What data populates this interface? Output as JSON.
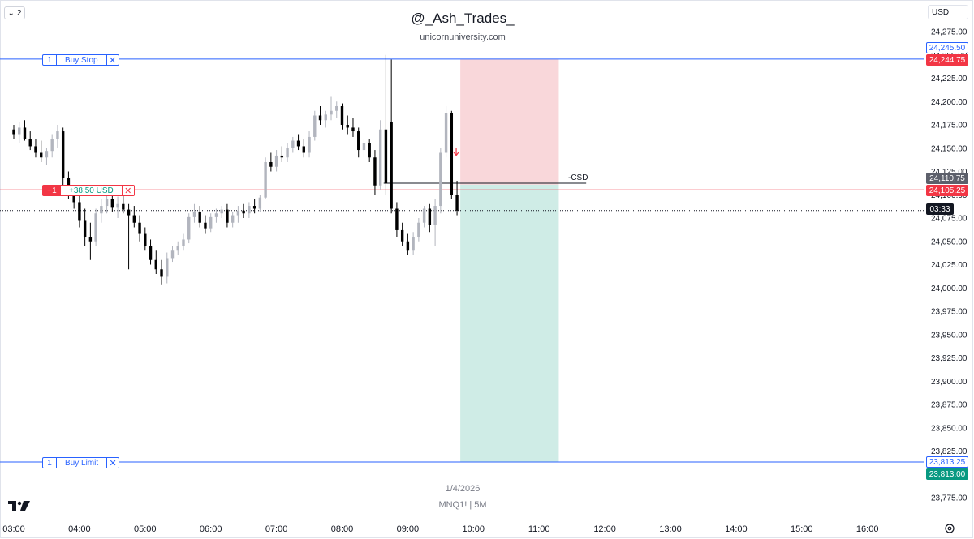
{
  "header": {
    "interval_count": "2",
    "currency": "USD"
  },
  "watermark": {
    "title": "@_Ash_Trades_",
    "subtitle": "unicornuniversity.com",
    "date": "1/4/2026",
    "symbol": "MNQ1!  |  5M"
  },
  "orders": {
    "buy_stop": {
      "qty": "1",
      "label": "Buy Stop",
      "price": 24245.5,
      "price_label": "24,245.50"
    },
    "buy_limit": {
      "qty": "1",
      "label": "Buy Limit",
      "price": 23813.25,
      "price_label": "23,813.25"
    }
  },
  "position": {
    "qty": "−1",
    "pnl": "+38.50 USD",
    "price": 24105.25,
    "price_label": "24,105.25"
  },
  "annotation": {
    "text": "-CSD",
    "price": 24115
  },
  "price_tags": {
    "stop_level": "24,244.75",
    "last_price": "24,110.75",
    "countdown": "03:33",
    "target_level": "23,813.00"
  },
  "colors": {
    "up_candle": "#b2b5be",
    "down_candle": "#000000",
    "order_line": "#2962ff",
    "position_line": "#f23645",
    "stop_zone": "#f7c9ce",
    "target_zone": "#bfe6dd",
    "grid": "#f0f3fa"
  },
  "chart_data": {
    "type": "candlestick",
    "ylim": [
      23765,
      24300
    ],
    "y_ticks": [
      "24,275.00",
      "24,250.00",
      "24,225.00",
      "24,200.00",
      "24,175.00",
      "24,150.00",
      "24,125.00",
      "24,100.00",
      "24,075.00",
      "24,050.00",
      "24,025.00",
      "24,000.00",
      "23,975.00",
      "23,950.00",
      "23,925.00",
      "23,900.00",
      "23,875.00",
      "23,850.00",
      "23,825.00",
      "23,800.00",
      "23,775.00"
    ],
    "x_ticks": [
      "03:00",
      "04:00",
      "05:00",
      "06:00",
      "07:00",
      "08:00",
      "09:00",
      "10:00",
      "11:00",
      "12:00",
      "13:00",
      "14:00",
      "15:00",
      "16:00"
    ],
    "x_tick_minutes": [
      0,
      60,
      120,
      180,
      240,
      300,
      360,
      420,
      480,
      540,
      600,
      660,
      720,
      780
    ],
    "risk_box": {
      "start_minute": 408,
      "end_minute": 498,
      "top": 24245.5,
      "entry": 24110.75,
      "bottom": 23813.25
    },
    "current_price_line": 24083,
    "candles": [
      {
        "t": 0,
        "o": 24170,
        "h": 24175,
        "l": 24160,
        "c": 24165
      },
      {
        "t": 5,
        "o": 24165,
        "h": 24178,
        "l": 24155,
        "c": 24172
      },
      {
        "t": 10,
        "o": 24172,
        "h": 24180,
        "l": 24158,
        "c": 24160
      },
      {
        "t": 15,
        "o": 24160,
        "h": 24168,
        "l": 24148,
        "c": 24152
      },
      {
        "t": 20,
        "o": 24152,
        "h": 24160,
        "l": 24140,
        "c": 24145
      },
      {
        "t": 25,
        "o": 24145,
        "h": 24158,
        "l": 24135,
        "c": 24140
      },
      {
        "t": 30,
        "o": 24140,
        "h": 24150,
        "l": 24132,
        "c": 24147
      },
      {
        "t": 35,
        "o": 24147,
        "h": 24165,
        "l": 24140,
        "c": 24160
      },
      {
        "t": 40,
        "o": 24160,
        "h": 24175,
        "l": 24150,
        "c": 24168
      },
      {
        "t": 45,
        "o": 24168,
        "h": 24172,
        "l": 24110,
        "c": 24118
      },
      {
        "t": 50,
        "o": 24118,
        "h": 24125,
        "l": 24095,
        "c": 24100
      },
      {
        "t": 55,
        "o": 24100,
        "h": 24108,
        "l": 24085,
        "c": 24092
      },
      {
        "t": 60,
        "o": 24092,
        "h": 24100,
        "l": 24065,
        "c": 24072
      },
      {
        "t": 65,
        "o": 24072,
        "h": 24085,
        "l": 24045,
        "c": 24055
      },
      {
        "t": 70,
        "o": 24055,
        "h": 24070,
        "l": 24030,
        "c": 24050
      },
      {
        "t": 75,
        "o": 24050,
        "h": 24085,
        "l": 24045,
        "c": 24080
      },
      {
        "t": 80,
        "o": 24080,
        "h": 24095,
        "l": 24070,
        "c": 24088
      },
      {
        "t": 85,
        "o": 24088,
        "h": 24100,
        "l": 24080,
        "c": 24095
      },
      {
        "t": 90,
        "o": 24095,
        "h": 24102,
        "l": 24082,
        "c": 24086
      },
      {
        "t": 95,
        "o": 24086,
        "h": 24098,
        "l": 24075,
        "c": 24090
      },
      {
        "t": 100,
        "o": 24090,
        "h": 24100,
        "l": 24080,
        "c": 24084
      },
      {
        "t": 105,
        "o": 24084,
        "h": 24090,
        "l": 24020,
        "c": 24078
      },
      {
        "t": 110,
        "o": 24078,
        "h": 24088,
        "l": 24065,
        "c": 24070
      },
      {
        "t": 115,
        "o": 24070,
        "h": 24078,
        "l": 24050,
        "c": 24058
      },
      {
        "t": 120,
        "o": 24058,
        "h": 24065,
        "l": 24040,
        "c": 24045
      },
      {
        "t": 125,
        "o": 24045,
        "h": 24052,
        "l": 24025,
        "c": 24030
      },
      {
        "t": 130,
        "o": 24030,
        "h": 24040,
        "l": 24015,
        "c": 24020
      },
      {
        "t": 135,
        "o": 24020,
        "h": 24030,
        "l": 24003,
        "c": 24012
      },
      {
        "t": 140,
        "o": 24012,
        "h": 24038,
        "l": 24005,
        "c": 24032
      },
      {
        "t": 145,
        "o": 24032,
        "h": 24045,
        "l": 24028,
        "c": 24040
      },
      {
        "t": 150,
        "o": 24040,
        "h": 24050,
        "l": 24035,
        "c": 24045
      },
      {
        "t": 155,
        "o": 24045,
        "h": 24058,
        "l": 24040,
        "c": 24052
      },
      {
        "t": 160,
        "o": 24052,
        "h": 24080,
        "l": 24048,
        "c": 24076
      },
      {
        "t": 165,
        "o": 24076,
        "h": 24090,
        "l": 24070,
        "c": 24082
      },
      {
        "t": 170,
        "o": 24082,
        "h": 24088,
        "l": 24065,
        "c": 24070
      },
      {
        "t": 175,
        "o": 24070,
        "h": 24078,
        "l": 24058,
        "c": 24064
      },
      {
        "t": 180,
        "o": 24064,
        "h": 24080,
        "l": 24060,
        "c": 24076
      },
      {
        "t": 185,
        "o": 24076,
        "h": 24085,
        "l": 24070,
        "c": 24080
      },
      {
        "t": 190,
        "o": 24080,
        "h": 24088,
        "l": 24075,
        "c": 24084
      },
      {
        "t": 195,
        "o": 24084,
        "h": 24090,
        "l": 24065,
        "c": 24070
      },
      {
        "t": 200,
        "o": 24070,
        "h": 24082,
        "l": 24065,
        "c": 24078
      },
      {
        "t": 205,
        "o": 24078,
        "h": 24088,
        "l": 24070,
        "c": 24083
      },
      {
        "t": 210,
        "o": 24083,
        "h": 24090,
        "l": 24075,
        "c": 24080
      },
      {
        "t": 215,
        "o": 24080,
        "h": 24092,
        "l": 24075,
        "c": 24088
      },
      {
        "t": 220,
        "o": 24088,
        "h": 24095,
        "l": 24080,
        "c": 24085
      },
      {
        "t": 225,
        "o": 24085,
        "h": 24100,
        "l": 24082,
        "c": 24097
      },
      {
        "t": 230,
        "o": 24097,
        "h": 24140,
        "l": 24095,
        "c": 24135
      },
      {
        "t": 235,
        "o": 24135,
        "h": 24145,
        "l": 24125,
        "c": 24130
      },
      {
        "t": 240,
        "o": 24130,
        "h": 24148,
        "l": 24125,
        "c": 24142
      },
      {
        "t": 245,
        "o": 24142,
        "h": 24152,
        "l": 24135,
        "c": 24140
      },
      {
        "t": 250,
        "o": 24140,
        "h": 24155,
        "l": 24135,
        "c": 24150
      },
      {
        "t": 255,
        "o": 24150,
        "h": 24162,
        "l": 24145,
        "c": 24158
      },
      {
        "t": 260,
        "o": 24158,
        "h": 24165,
        "l": 24148,
        "c": 24152
      },
      {
        "t": 265,
        "o": 24152,
        "h": 24160,
        "l": 24140,
        "c": 24145
      },
      {
        "t": 270,
        "o": 24145,
        "h": 24168,
        "l": 24140,
        "c": 24162
      },
      {
        "t": 275,
        "o": 24162,
        "h": 24190,
        "l": 24158,
        "c": 24185
      },
      {
        "t": 280,
        "o": 24185,
        "h": 24195,
        "l": 24175,
        "c": 24180
      },
      {
        "t": 285,
        "o": 24180,
        "h": 24190,
        "l": 24172,
        "c": 24186
      },
      {
        "t": 290,
        "o": 24186,
        "h": 24205,
        "l": 24180,
        "c": 24190
      },
      {
        "t": 295,
        "o": 24190,
        "h": 24200,
        "l": 24182,
        "c": 24195
      },
      {
        "t": 300,
        "o": 24195,
        "h": 24198,
        "l": 24170,
        "c": 24175
      },
      {
        "t": 305,
        "o": 24175,
        "h": 24185,
        "l": 24165,
        "c": 24172
      },
      {
        "t": 310,
        "o": 24172,
        "h": 24182,
        "l": 24162,
        "c": 24168
      },
      {
        "t": 315,
        "o": 24168,
        "h": 24172,
        "l": 24140,
        "c": 24148
      },
      {
        "t": 320,
        "o": 24148,
        "h": 24160,
        "l": 24140,
        "c": 24155
      },
      {
        "t": 325,
        "o": 24155,
        "h": 24160,
        "l": 24135,
        "c": 24140
      },
      {
        "t": 330,
        "o": 24140,
        "h": 24148,
        "l": 24100,
        "c": 24110
      },
      {
        "t": 335,
        "o": 24110,
        "h": 24180,
        "l": 24105,
        "c": 24170
      },
      {
        "t": 340,
        "o": 24170,
        "h": 24250,
        "l": 24100,
        "c": 24112
      },
      {
        "t": 345,
        "o": 24178,
        "h": 24245,
        "l": 24080,
        "c": 24085
      },
      {
        "t": 350,
        "o": 24085,
        "h": 24092,
        "l": 24055,
        "c": 24062
      },
      {
        "t": 355,
        "o": 24062,
        "h": 24070,
        "l": 24045,
        "c": 24050
      },
      {
        "t": 360,
        "o": 24050,
        "h": 24058,
        "l": 24035,
        "c": 24040
      },
      {
        "t": 365,
        "o": 24040,
        "h": 24060,
        "l": 24035,
        "c": 24055
      },
      {
        "t": 370,
        "o": 24055,
        "h": 24075,
        "l": 24050,
        "c": 24070
      },
      {
        "t": 375,
        "o": 24070,
        "h": 24088,
        "l": 24065,
        "c": 24085
      },
      {
        "t": 380,
        "o": 24085,
        "h": 24090,
        "l": 24060,
        "c": 24068
      },
      {
        "t": 385,
        "o": 24068,
        "h": 24095,
        "l": 24045,
        "c": 24088
      },
      {
        "t": 390,
        "o": 24088,
        "h": 24150,
        "l": 24080,
        "c": 24145
      },
      {
        "t": 395,
        "o": 24145,
        "h": 24195,
        "l": 24140,
        "c": 24188
      },
      {
        "t": 400,
        "o": 24188,
        "h": 24190,
        "l": 24095,
        "c": 24100
      },
      {
        "t": 405,
        "o": 24100,
        "h": 24115,
        "l": 24078,
        "c": 24083
      }
    ]
  }
}
